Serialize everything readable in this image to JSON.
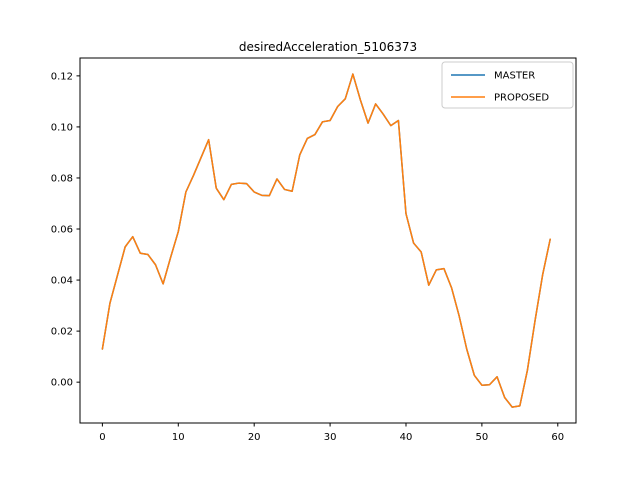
{
  "chart_data": {
    "type": "line",
    "title": "desiredAcceleration_5106373",
    "xlabel": "",
    "ylabel": "",
    "grid": false,
    "legend_position": "upper right",
    "legend_frame_color": "#cccccc",
    "background_color": "#ffffff",
    "xlim": [
      -2.95,
      62.4
    ],
    "ylim": [
      -0.016,
      0.127
    ],
    "x_ticks": [
      0,
      10,
      20,
      30,
      40,
      50,
      60
    ],
    "y_ticks": [
      0.0,
      0.02,
      0.04,
      0.06,
      0.08,
      0.1,
      0.12
    ],
    "x": [
      0,
      1,
      2,
      3,
      4,
      5,
      6,
      7,
      8,
      9,
      10,
      11,
      12,
      13,
      14,
      15,
      16,
      17,
      18,
      19,
      20,
      21,
      22,
      23,
      24,
      25,
      26,
      27,
      28,
      29,
      30,
      31,
      32,
      33,
      34,
      35,
      36,
      37,
      38,
      39,
      40,
      41,
      42,
      43,
      44,
      45,
      46,
      47,
      48,
      49,
      50,
      51,
      52,
      53,
      54,
      55,
      56,
      57,
      58,
      59
    ],
    "series": [
      {
        "name": "MASTER",
        "color": "#1f77b4",
        "values": [
          0.013,
          0.031,
          0.042,
          0.053,
          0.057,
          0.0505,
          0.05,
          0.046,
          0.0385,
          0.049,
          0.059,
          0.0745,
          0.081,
          0.088,
          0.095,
          0.076,
          0.0715,
          0.0775,
          0.078,
          0.0778,
          0.0745,
          0.0732,
          0.0731,
          0.0796,
          0.0755,
          0.0748,
          0.089,
          0.0955,
          0.097,
          0.102,
          0.1025,
          0.108,
          0.111,
          0.1207,
          0.1105,
          0.1015,
          0.109,
          0.105,
          0.1005,
          0.1025,
          0.066,
          0.0545,
          0.051,
          0.038,
          0.044,
          0.0445,
          0.037,
          0.026,
          0.013,
          0.0027,
          -0.0012,
          -0.001,
          0.0021,
          -0.006,
          -0.0098,
          -0.0093,
          0.0047,
          0.024,
          0.042,
          0.056
        ]
      },
      {
        "name": "PROPOSED",
        "color": "#ff7f0e",
        "values": [
          0.013,
          0.031,
          0.042,
          0.053,
          0.057,
          0.0505,
          0.05,
          0.046,
          0.0385,
          0.049,
          0.059,
          0.0745,
          0.081,
          0.088,
          0.095,
          0.076,
          0.0715,
          0.0775,
          0.078,
          0.0778,
          0.0745,
          0.0732,
          0.0731,
          0.0796,
          0.0755,
          0.0748,
          0.089,
          0.0955,
          0.097,
          0.102,
          0.1025,
          0.108,
          0.111,
          0.1207,
          0.1105,
          0.1015,
          0.109,
          0.105,
          0.1005,
          0.1025,
          0.066,
          0.0545,
          0.051,
          0.038,
          0.044,
          0.0445,
          0.037,
          0.026,
          0.013,
          0.0027,
          -0.0012,
          -0.001,
          0.0021,
          -0.006,
          -0.0098,
          -0.0093,
          0.0047,
          0.024,
          0.042,
          0.056
        ]
      }
    ],
    "note": "MASTER and PROPOSED curves are identical; the orange PROPOSED line is drawn on top of the blue MASTER line."
  }
}
